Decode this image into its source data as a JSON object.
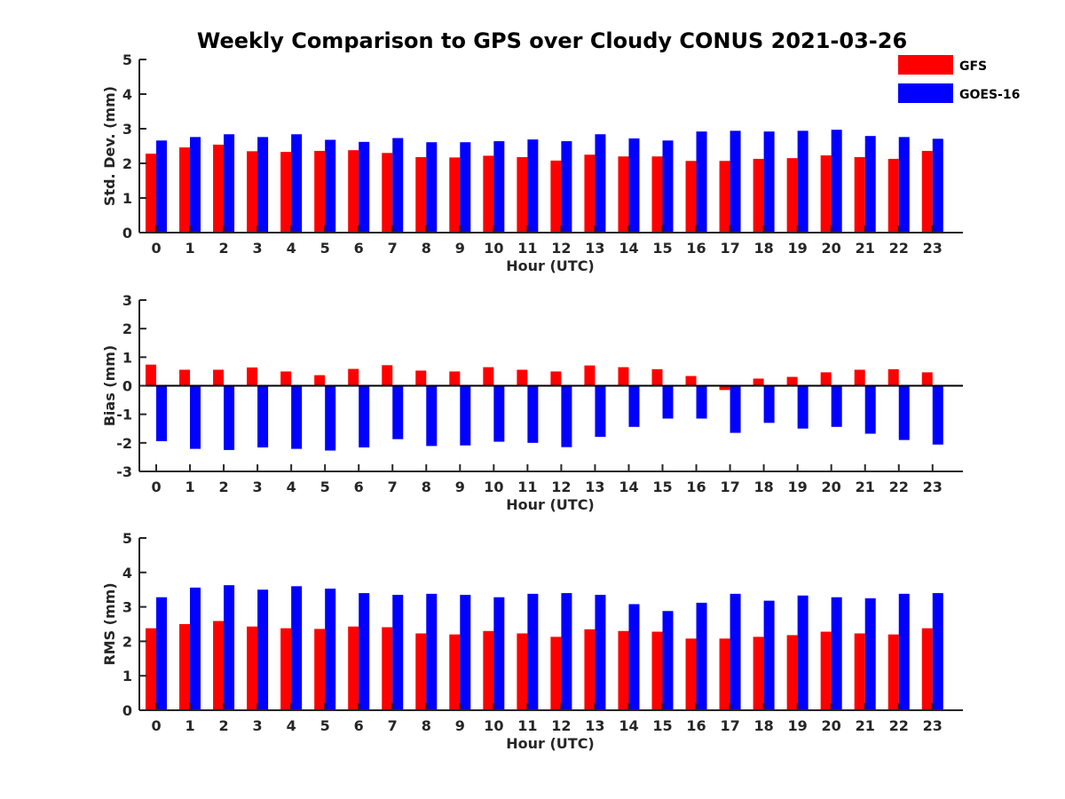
{
  "title": "Weekly Comparison to GPS over Cloudy CONUS 2021-03-26",
  "legend": {
    "placement": "top-right",
    "items": [
      {
        "label": "GFS",
        "color": "#ff0000"
      },
      {
        "label": "GOES-16",
        "color": "#0000ff"
      }
    ]
  },
  "chart_data": [
    {
      "type": "bar",
      "xlabel": "Hour (UTC)",
      "ylabel": "Std. Dev. (mm)",
      "ylim": [
        0,
        5
      ],
      "yticks": [
        0,
        1,
        2,
        3,
        4,
        5
      ],
      "categories": [
        "0",
        "1",
        "2",
        "3",
        "4",
        "5",
        "6",
        "7",
        "8",
        "9",
        "10",
        "11",
        "12",
        "13",
        "14",
        "15",
        "16",
        "17",
        "18",
        "19",
        "20",
        "21",
        "22",
        "23"
      ],
      "series": [
        {
          "name": "GFS",
          "color": "#ff0000",
          "values": [
            2.28,
            2.46,
            2.54,
            2.35,
            2.33,
            2.36,
            2.38,
            2.3,
            2.18,
            2.17,
            2.22,
            2.18,
            2.08,
            2.25,
            2.2,
            2.2,
            2.07,
            2.07,
            2.13,
            2.15,
            2.23,
            2.18,
            2.13,
            2.36
          ]
        },
        {
          "name": "GOES-16",
          "color": "#0000ff",
          "values": [
            2.66,
            2.76,
            2.84,
            2.76,
            2.84,
            2.68,
            2.62,
            2.73,
            2.61,
            2.61,
            2.64,
            2.69,
            2.64,
            2.84,
            2.72,
            2.66,
            2.92,
            2.94,
            2.92,
            2.94,
            2.97,
            2.79,
            2.76,
            2.71
          ]
        }
      ]
    },
    {
      "type": "bar",
      "xlabel": "Hour (UTC)",
      "ylabel": "Bias (mm)",
      "ylim": [
        -3,
        3
      ],
      "yticks": [
        -3,
        -2,
        -1,
        0,
        1,
        2,
        3
      ],
      "zero_line": true,
      "categories": [
        "0",
        "1",
        "2",
        "3",
        "4",
        "5",
        "6",
        "7",
        "8",
        "9",
        "10",
        "11",
        "12",
        "13",
        "14",
        "15",
        "16",
        "17",
        "18",
        "19",
        "20",
        "21",
        "22",
        "23"
      ],
      "series": [
        {
          "name": "GFS",
          "color": "#ff0000",
          "values": [
            0.74,
            0.56,
            0.56,
            0.64,
            0.5,
            0.37,
            0.59,
            0.72,
            0.53,
            0.5,
            0.65,
            0.56,
            0.5,
            0.71,
            0.65,
            0.58,
            0.34,
            -0.15,
            0.25,
            0.31,
            0.47,
            0.56,
            0.58,
            0.47
          ]
        },
        {
          "name": "GOES-16",
          "color": "#0000ff",
          "values": [
            -1.94,
            -2.21,
            -2.25,
            -2.16,
            -2.21,
            -2.27,
            -2.16,
            -1.87,
            -2.11,
            -2.09,
            -1.96,
            -2.0,
            -2.15,
            -1.79,
            -1.44,
            -1.15,
            -1.15,
            -1.65,
            -1.3,
            -1.5,
            -1.44,
            -1.68,
            -1.9,
            -2.06
          ]
        }
      ]
    },
    {
      "type": "bar",
      "xlabel": "Hour (UTC)",
      "ylabel": "RMS (mm)",
      "ylim": [
        0,
        5
      ],
      "yticks": [
        0,
        1,
        2,
        3,
        4,
        5
      ],
      "categories": [
        "0",
        "1",
        "2",
        "3",
        "4",
        "5",
        "6",
        "7",
        "8",
        "9",
        "10",
        "11",
        "12",
        "13",
        "14",
        "15",
        "16",
        "17",
        "18",
        "19",
        "20",
        "21",
        "22",
        "23"
      ],
      "series": [
        {
          "name": "GFS",
          "color": "#ff0000",
          "values": [
            2.38,
            2.5,
            2.59,
            2.43,
            2.38,
            2.36,
            2.43,
            2.41,
            2.23,
            2.2,
            2.3,
            2.23,
            2.13,
            2.35,
            2.3,
            2.28,
            2.08,
            2.08,
            2.13,
            2.18,
            2.28,
            2.23,
            2.2,
            2.38
          ]
        },
        {
          "name": "GOES-16",
          "color": "#0000ff",
          "values": [
            3.28,
            3.56,
            3.63,
            3.5,
            3.6,
            3.53,
            3.4,
            3.35,
            3.38,
            3.35,
            3.28,
            3.38,
            3.4,
            3.35,
            3.08,
            2.88,
            3.12,
            3.38,
            3.18,
            3.33,
            3.28,
            3.25,
            3.38,
            3.4
          ]
        }
      ]
    }
  ]
}
